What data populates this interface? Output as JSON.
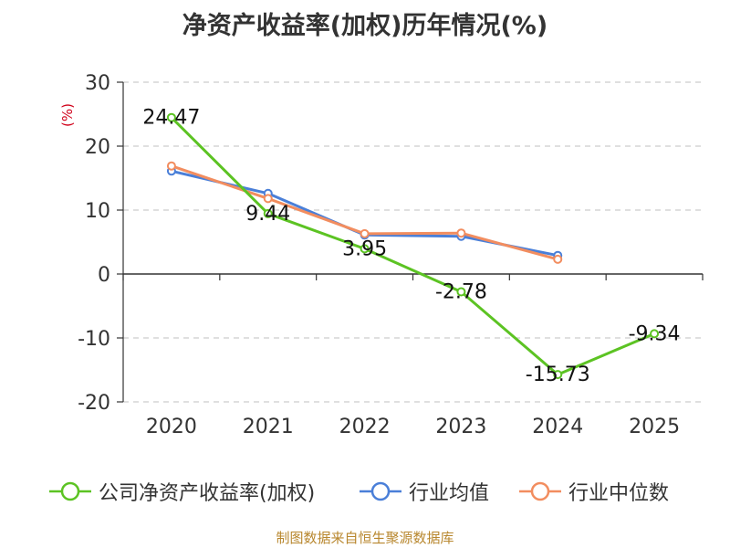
{
  "chart_data": {
    "type": "line",
    "title": "净资产收益率(加权)历年情况(%)",
    "ylabel": "(%)",
    "xlabel": "",
    "categories": [
      "2020",
      "2021",
      "2022",
      "2023",
      "2024",
      "2025"
    ],
    "ylim": [
      -20,
      30
    ],
    "yticks": [
      30,
      20,
      10,
      0,
      -10,
      -20
    ],
    "grid": true,
    "legend_position": "bottom",
    "series": [
      {
        "name": "公司净资产收益率(加权)",
        "color": "#5cc323",
        "values": [
          24.47,
          9.44,
          3.95,
          -2.78,
          -15.73,
          -9.34
        ],
        "show_labels": true
      },
      {
        "name": "行业均值",
        "color": "#4a7fd8",
        "values": [
          16.1,
          12.6,
          6.1,
          5.9,
          2.9,
          null
        ],
        "show_labels": false
      },
      {
        "name": "行业中位数",
        "color": "#f28d5f",
        "values": [
          16.9,
          11.8,
          6.3,
          6.4,
          2.3,
          null
        ],
        "show_labels": false
      }
    ]
  },
  "source": "制图数据来自恒生聚源数据库"
}
